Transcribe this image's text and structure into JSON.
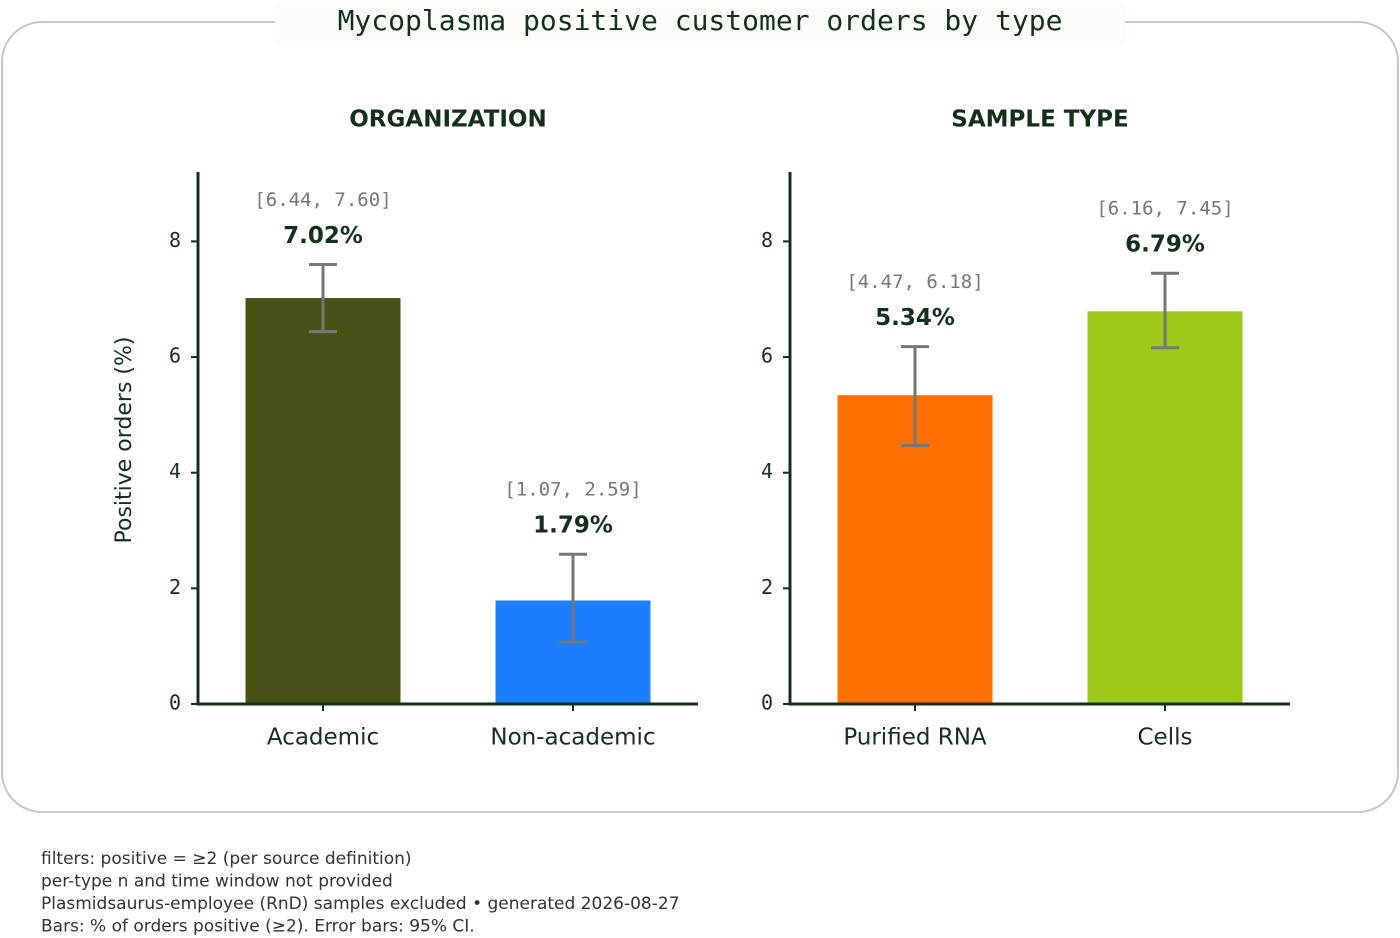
{
  "title": "Mycoplasma positive customer orders by type",
  "notes": [
    "filters: positive = ≥2 (per source definition)",
    "per-type n and time window not provided",
    "Plasmidsaurus-employee (RnD) samples excluded • generated 2026-08-27",
    "Bars: % of orders positive (≥2). Error bars: 95% CI."
  ],
  "chart_data": [
    {
      "type": "bar",
      "title": "ORGANIZATION",
      "ylabel": "Positive orders (%)",
      "categories": [
        "Academic",
        "Non-academic"
      ],
      "values": [
        7.02,
        1.79
      ],
      "value_labels": [
        "7.02%",
        "1.79%"
      ],
      "colors": [
        "#475314",
        "#1a80ff"
      ],
      "ci": [
        [
          6.44,
          7.6
        ],
        [
          1.07,
          2.59
        ]
      ],
      "ci_labels": [
        "[6.44, 7.60]",
        "[1.07, 2.59]"
      ],
      "ylim": [
        0,
        9.2
      ],
      "yticks": [
        0,
        2,
        4,
        6,
        8
      ]
    },
    {
      "type": "bar",
      "title": "SAMPLE TYPE",
      "categories": [
        "Purified RNA",
        "Cells"
      ],
      "values": [
        5.34,
        6.79
      ],
      "value_labels": [
        "5.34%",
        "6.79%"
      ],
      "colors": [
        "#ff7000",
        "#9cc91a"
      ],
      "ci": [
        [
          4.47,
          6.18
        ],
        [
          6.16,
          7.45
        ]
      ],
      "ci_labels": [
        "[4.47, 6.18]",
        "[6.16, 7.45]"
      ],
      "ylim": [
        0,
        9.2
      ],
      "yticks": [
        0,
        2,
        4,
        6,
        8
      ]
    }
  ]
}
